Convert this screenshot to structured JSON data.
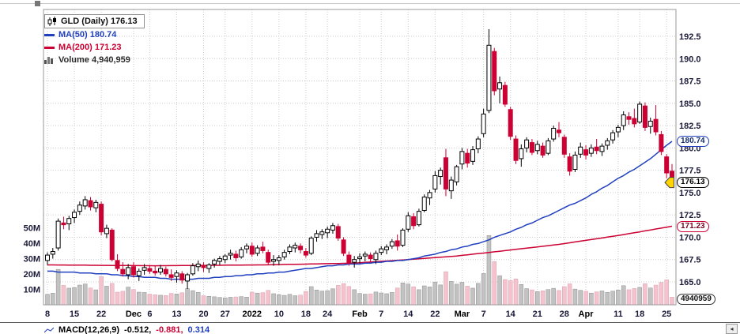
{
  "legend": {
    "symbol_title": "GLD (Daily) 176.13",
    "ma50": "MA(50) 180.74",
    "ma200": "MA(200) 171.23",
    "volume": "Volume 4,940,959"
  },
  "callouts": {
    "ma50": "180.74",
    "last": "176.13",
    "ma200": "171.23",
    "volume": "4940959"
  },
  "macd": {
    "label": "MACD(12,26,9)",
    "v1": "-0.512,",
    "v2": "-0.881,",
    "v3": "0.314"
  },
  "scroll": {
    "left_arrow": "◂"
  },
  "colors": {
    "up": "#000000",
    "up_fill": "#ffffff",
    "down": "#cc0033",
    "ma50": "#2140bf",
    "ma200": "#cc0033",
    "vol_up": "#c2c2c2",
    "vol_up_stroke": "#8f8f8f",
    "vol_down": "#f4c3ce",
    "vol_down_stroke": "#d8a0ae",
    "grid": "#cccccc",
    "axis_text": "#1a1a38",
    "marker": "#ffd400"
  },
  "chart_data": {
    "type": "candlestick",
    "title": "GLD (Daily)",
    "last_price": 176.13,
    "ma50_last": 180.74,
    "ma200_last": 171.23,
    "last_volume": 4940959,
    "price_axis": {
      "min": 165.0,
      "max": 192.5,
      "step": 2.5,
      "ticks": [
        165.0,
        167.5,
        170.0,
        172.5,
        175.0,
        177.5,
        180.0,
        182.5,
        185.0,
        187.5,
        190.0,
        192.5
      ]
    },
    "volume_axis": {
      "ticks_m": [
        10,
        20,
        30,
        40,
        50
      ]
    },
    "x_ticks": [
      {
        "i": 0,
        "l": "8",
        "b": false
      },
      {
        "i": 5,
        "l": "15",
        "b": false
      },
      {
        "i": 10,
        "l": "22",
        "b": false
      },
      {
        "i": 16,
        "l": "Dec",
        "b": true
      },
      {
        "i": 19,
        "l": "6",
        "b": false
      },
      {
        "i": 24,
        "l": "13",
        "b": false
      },
      {
        "i": 29,
        "l": "20",
        "b": false
      },
      {
        "i": 33,
        "l": "27",
        "b": false
      },
      {
        "i": 38,
        "l": "2022",
        "b": true
      },
      {
        "i": 43,
        "l": "10",
        "b": false
      },
      {
        "i": 48,
        "l": "18",
        "b": false
      },
      {
        "i": 52,
        "l": "24",
        "b": false
      },
      {
        "i": 58,
        "l": "Feb",
        "b": true
      },
      {
        "i": 62,
        "l": "7",
        "b": false
      },
      {
        "i": 67,
        "l": "14",
        "b": false
      },
      {
        "i": 72,
        "l": "22",
        "b": false
      },
      {
        "i": 77,
        "l": "Mar",
        "b": true
      },
      {
        "i": 81,
        "l": "7",
        "b": false
      },
      {
        "i": 86,
        "l": "14",
        "b": false
      },
      {
        "i": 91,
        "l": "21",
        "b": false
      },
      {
        "i": 96,
        "l": "28",
        "b": false
      },
      {
        "i": 100,
        "l": "Apr",
        "b": true
      },
      {
        "i": 106,
        "l": "11",
        "b": false
      },
      {
        "i": 110,
        "l": "18",
        "b": false
      },
      {
        "i": 115,
        "l": "25",
        "b": false
      }
    ],
    "candles": [
      [
        167.4,
        168.3,
        166.9,
        168.0,
        6.8
      ],
      [
        168.1,
        168.8,
        167.6,
        168.4,
        7.5
      ],
      [
        168.8,
        172.1,
        168.5,
        171.8,
        23.0
      ],
      [
        171.6,
        172.3,
        170.9,
        171.4,
        12.6
      ],
      [
        171.5,
        172.4,
        170.8,
        172.1,
        10.8
      ],
      [
        172.2,
        173.1,
        171.6,
        172.8,
        11.2
      ],
      [
        172.9,
        174.0,
        172.5,
        173.6,
        12.8
      ],
      [
        173.5,
        174.6,
        173.1,
        174.2,
        13.5
      ],
      [
        174.1,
        174.5,
        173.0,
        173.4,
        10.9
      ],
      [
        173.3,
        174.2,
        172.8,
        173.9,
        9.7
      ],
      [
        173.7,
        174.0,
        170.2,
        170.6,
        18.3
      ],
      [
        170.4,
        171.4,
        169.9,
        171.0,
        12.1
      ],
      [
        170.8,
        171.0,
        167.3,
        167.5,
        13.9
      ],
      [
        167.4,
        168.1,
        166.2,
        166.5,
        8.2
      ],
      [
        166.4,
        167.2,
        165.6,
        165.9,
        8.8
      ],
      [
        165.8,
        167.0,
        165.3,
        166.6,
        11.5
      ],
      [
        166.7,
        167.2,
        165.5,
        165.8,
        9.9
      ],
      [
        165.7,
        166.5,
        165.1,
        166.2,
        8.2
      ],
      [
        166.3,
        167.0,
        165.8,
        166.6,
        8.0
      ],
      [
        166.5,
        166.9,
        165.9,
        166.2,
        6.9
      ],
      [
        166.2,
        166.8,
        165.7,
        166.0,
        6.5
      ],
      [
        166.1,
        166.9,
        165.8,
        166.5,
        6.2
      ],
      [
        166.4,
        166.7,
        165.6,
        165.9,
        6.0
      ],
      [
        165.8,
        166.4,
        165.1,
        165.5,
        7.4
      ],
      [
        165.6,
        166.3,
        164.9,
        166.0,
        7.0
      ],
      [
        165.9,
        166.2,
        164.8,
        165.2,
        7.8
      ],
      [
        165.1,
        166.0,
        164.2,
        165.8,
        10.5
      ],
      [
        165.9,
        167.1,
        165.7,
        166.8,
        9.2
      ],
      [
        166.7,
        167.4,
        166.2,
        167.0,
        8.1
      ],
      [
        166.8,
        167.2,
        166.1,
        166.6,
        5.9
      ],
      [
        166.5,
        167.1,
        166.0,
        166.9,
        5.5
      ],
      [
        167.0,
        167.6,
        166.6,
        167.4,
        5.2
      ],
      [
        167.3,
        167.9,
        166.9,
        167.6,
        4.8
      ],
      [
        167.5,
        168.1,
        167.1,
        167.9,
        4.5
      ],
      [
        168.0,
        168.6,
        167.5,
        168.2,
        4.9
      ],
      [
        168.1,
        168.5,
        167.3,
        167.7,
        5.1
      ],
      [
        167.8,
        168.9,
        167.6,
        168.6,
        5.3
      ],
      [
        168.7,
        169.3,
        168.2,
        169.0,
        5.0
      ],
      [
        169.0,
        169.4,
        167.8,
        168.1,
        8.2
      ],
      [
        168.2,
        169.1,
        167.9,
        168.8,
        7.6
      ],
      [
        168.9,
        169.5,
        168.2,
        168.5,
        7.9
      ],
      [
        168.3,
        168.6,
        166.9,
        167.2,
        9.4
      ],
      [
        167.3,
        168.0,
        166.8,
        167.5,
        7.2
      ],
      [
        167.4,
        168.0,
        166.9,
        167.7,
        6.6
      ],
      [
        167.8,
        168.6,
        167.5,
        168.3,
        6.1
      ],
      [
        168.4,
        169.2,
        168.1,
        168.9,
        6.8
      ],
      [
        168.8,
        169.4,
        168.3,
        169.1,
        5.9
      ],
      [
        169.0,
        169.3,
        168.2,
        168.6,
        6.3
      ],
      [
        168.4,
        168.8,
        167.7,
        168.0,
        8.7
      ],
      [
        168.2,
        170.1,
        168.0,
        169.9,
        11.8
      ],
      [
        170.0,
        170.8,
        169.5,
        170.4,
        9.6
      ],
      [
        170.3,
        170.9,
        169.8,
        170.6,
        8.9
      ],
      [
        170.5,
        171.2,
        169.9,
        170.9,
        9.2
      ],
      [
        170.8,
        171.6,
        170.4,
        171.3,
        10.4
      ],
      [
        171.2,
        171.5,
        169.6,
        169.9,
        12.6
      ],
      [
        169.7,
        170.0,
        167.9,
        168.2,
        13.8
      ],
      [
        168.0,
        168.4,
        166.8,
        167.1,
        11.9
      ],
      [
        167.2,
        167.9,
        166.6,
        167.5,
        9.8
      ],
      [
        167.6,
        168.2,
        167.1,
        167.8,
        7.4
      ],
      [
        167.9,
        168.4,
        167.3,
        168.1,
        6.9
      ],
      [
        168.0,
        168.3,
        167.2,
        167.6,
        7.1
      ],
      [
        167.5,
        168.5,
        167.0,
        168.2,
        8.3
      ],
      [
        168.3,
        169.0,
        168.0,
        168.7,
        7.7
      ],
      [
        168.6,
        169.2,
        168.1,
        168.9,
        7.2
      ],
      [
        169.0,
        169.8,
        168.7,
        169.5,
        8.0
      ],
      [
        169.6,
        170.3,
        168.5,
        169.0,
        10.9
      ],
      [
        169.1,
        171.0,
        168.9,
        170.8,
        14.2
      ],
      [
        170.9,
        172.8,
        170.6,
        172.4,
        13.5
      ],
      [
        172.3,
        172.7,
        170.9,
        171.3,
        11.7
      ],
      [
        171.4,
        173.2,
        171.2,
        172.9,
        9.8
      ],
      [
        173.0,
        174.8,
        172.8,
        174.5,
        12.3
      ],
      [
        174.4,
        175.3,
        173.6,
        175.0,
        11.6
      ],
      [
        175.4,
        177.4,
        175.0,
        176.9,
        14.8
      ],
      [
        176.8,
        177.8,
        175.9,
        177.5,
        12.9
      ],
      [
        178.9,
        179.9,
        174.6,
        175.4,
        21.5
      ],
      [
        175.2,
        176.8,
        174.3,
        176.4,
        15.2
      ],
      [
        176.2,
        178.1,
        175.8,
        177.9,
        13.4
      ],
      [
        178.2,
        180.0,
        177.6,
        179.6,
        14.6
      ],
      [
        179.4,
        179.9,
        177.8,
        178.3,
        12.1
      ],
      [
        178.5,
        180.2,
        178.1,
        179.8,
        10.8
      ],
      [
        179.9,
        181.3,
        179.4,
        181.0,
        13.9
      ],
      [
        181.6,
        184.4,
        181.2,
        183.8,
        20.3
      ],
      [
        184.2,
        193.3,
        183.9,
        191.5,
        45.0
      ],
      [
        190.8,
        191.2,
        185.9,
        186.4,
        28.0
      ],
      [
        186.6,
        188.0,
        185.0,
        187.3,
        18.9
      ],
      [
        187.0,
        187.4,
        184.6,
        184.9,
        16.4
      ],
      [
        184.3,
        184.6,
        180.9,
        181.3,
        15.7
      ],
      [
        181.0,
        181.4,
        178.2,
        178.6,
        16.8
      ],
      [
        178.8,
        180.4,
        177.9,
        179.9,
        13.2
      ],
      [
        180.0,
        181.2,
        179.5,
        180.9,
        10.5
      ],
      [
        180.6,
        181.0,
        179.2,
        179.5,
        9.7
      ],
      [
        179.7,
        180.8,
        179.3,
        180.4,
        8.6
      ],
      [
        180.2,
        180.6,
        178.9,
        179.2,
        9.1
      ],
      [
        179.4,
        181.1,
        179.2,
        180.8,
        9.9
      ],
      [
        181.0,
        182.5,
        180.7,
        182.2,
        10.7
      ],
      [
        182.0,
        182.9,
        181.2,
        181.7,
        9.3
      ],
      [
        181.2,
        181.5,
        178.9,
        179.3,
        11.8
      ],
      [
        179.0,
        179.4,
        176.9,
        177.4,
        13.6
      ],
      [
        177.6,
        179.6,
        177.3,
        179.2,
        10.2
      ],
      [
        179.3,
        180.6,
        178.9,
        180.1,
        9.4
      ],
      [
        179.8,
        180.3,
        178.7,
        179.2,
        8.8
      ],
      [
        179.4,
        180.4,
        179.0,
        180.0,
        7.6
      ],
      [
        180.1,
        181.0,
        179.3,
        179.7,
        8.4
      ],
      [
        179.6,
        180.5,
        179.1,
        180.2,
        9.0
      ],
      [
        180.3,
        181.1,
        179.8,
        180.8,
        8.1
      ],
      [
        180.9,
        182.0,
        180.5,
        181.7,
        8.9
      ],
      [
        181.8,
        182.6,
        181.2,
        182.3,
        9.6
      ],
      [
        182.5,
        184.1,
        182.0,
        183.7,
        12.4
      ],
      [
        183.5,
        184.0,
        182.6,
        183.2,
        9.8
      ],
      [
        183.3,
        184.4,
        182.3,
        182.7,
        10.6
      ],
      [
        182.9,
        185.2,
        182.7,
        184.9,
        11.3
      ],
      [
        184.7,
        185.1,
        181.9,
        182.3,
        13.7
      ],
      [
        182.4,
        183.4,
        181.6,
        183.0,
        10.9
      ],
      [
        183.2,
        184.8,
        181.4,
        181.8,
        12.8
      ],
      [
        181.5,
        181.9,
        179.2,
        179.6,
        14.5
      ],
      [
        179.0,
        179.3,
        176.6,
        177.2,
        16.2
      ],
      [
        177.4,
        178.2,
        175.8,
        176.13,
        4.94
      ]
    ],
    "ma50": [
      166.2,
      166.2,
      166.1,
      166.1,
      166.1,
      166.1,
      166.0,
      166.0,
      166.0,
      165.9,
      165.9,
      165.9,
      165.8,
      165.8,
      165.7,
      165.7,
      165.6,
      165.6,
      165.5,
      165.5,
      165.5,
      165.4,
      165.4,
      165.3,
      165.3,
      165.3,
      165.3,
      165.3,
      165.4,
      165.4,
      165.4,
      165.5,
      165.5,
      165.6,
      165.6,
      165.7,
      165.7,
      165.8,
      165.8,
      165.9,
      165.9,
      166.0,
      166.0,
      166.1,
      166.1,
      166.2,
      166.3,
      166.4,
      166.5,
      166.5,
      166.6,
      166.7,
      166.8,
      166.8,
      166.9,
      166.9,
      167.0,
      167.0,
      167.0,
      167.1,
      167.1,
      167.2,
      167.2,
      167.3,
      167.3,
      167.4,
      167.4,
      167.5,
      167.6,
      167.7,
      167.9,
      168.0,
      168.1,
      168.3,
      168.4,
      168.6,
      168.7,
      168.9,
      169.0,
      169.2,
      169.3,
      169.5,
      169.7,
      170.0,
      170.2,
      170.4,
      170.6,
      170.9,
      171.1,
      171.4,
      171.6,
      171.9,
      172.2,
      172.4,
      172.7,
      173.0,
      173.3,
      173.6,
      173.8,
      174.1,
      174.4,
      174.8,
      175.1,
      175.5,
      175.8,
      176.2,
      176.6,
      176.9,
      177.3,
      177.6,
      178.0,
      178.4,
      178.8,
      179.3,
      179.8,
      180.3,
      180.74
    ],
    "ma200": [
      166.9,
      166.9,
      166.89,
      166.89,
      166.88,
      166.88,
      166.87,
      166.87,
      166.86,
      166.86,
      166.85,
      166.85,
      166.84,
      166.84,
      166.83,
      166.83,
      166.82,
      166.82,
      166.81,
      166.81,
      166.8,
      166.81,
      166.81,
      166.82,
      166.82,
      166.83,
      166.83,
      166.84,
      166.84,
      166.85,
      166.85,
      166.86,
      166.86,
      166.87,
      166.87,
      166.88,
      166.88,
      166.89,
      166.89,
      166.9,
      166.9,
      166.91,
      166.92,
      166.94,
      166.95,
      166.96,
      166.97,
      166.98,
      166.99,
      167.01,
      167.02,
      167.03,
      167.04,
      167.05,
      167.06,
      167.08,
      167.09,
      167.1,
      167.14,
      167.18,
      167.22,
      167.26,
      167.3,
      167.34,
      167.38,
      167.42,
      167.46,
      167.5,
      167.54,
      167.59,
      167.63,
      167.68,
      167.72,
      167.77,
      167.81,
      167.86,
      167.9,
      167.97,
      168.03,
      168.1,
      168.17,
      168.23,
      168.3,
      168.37,
      168.43,
      168.5,
      168.57,
      168.64,
      168.71,
      168.78,
      168.85,
      168.92,
      168.99,
      169.06,
      169.13,
      169.2,
      169.29,
      169.38,
      169.47,
      169.56,
      169.65,
      169.74,
      169.83,
      169.92,
      170.01,
      170.1,
      170.2,
      170.3,
      170.4,
      170.5,
      170.6,
      170.71,
      170.81,
      170.92,
      171.02,
      171.13,
      171.23
    ]
  }
}
